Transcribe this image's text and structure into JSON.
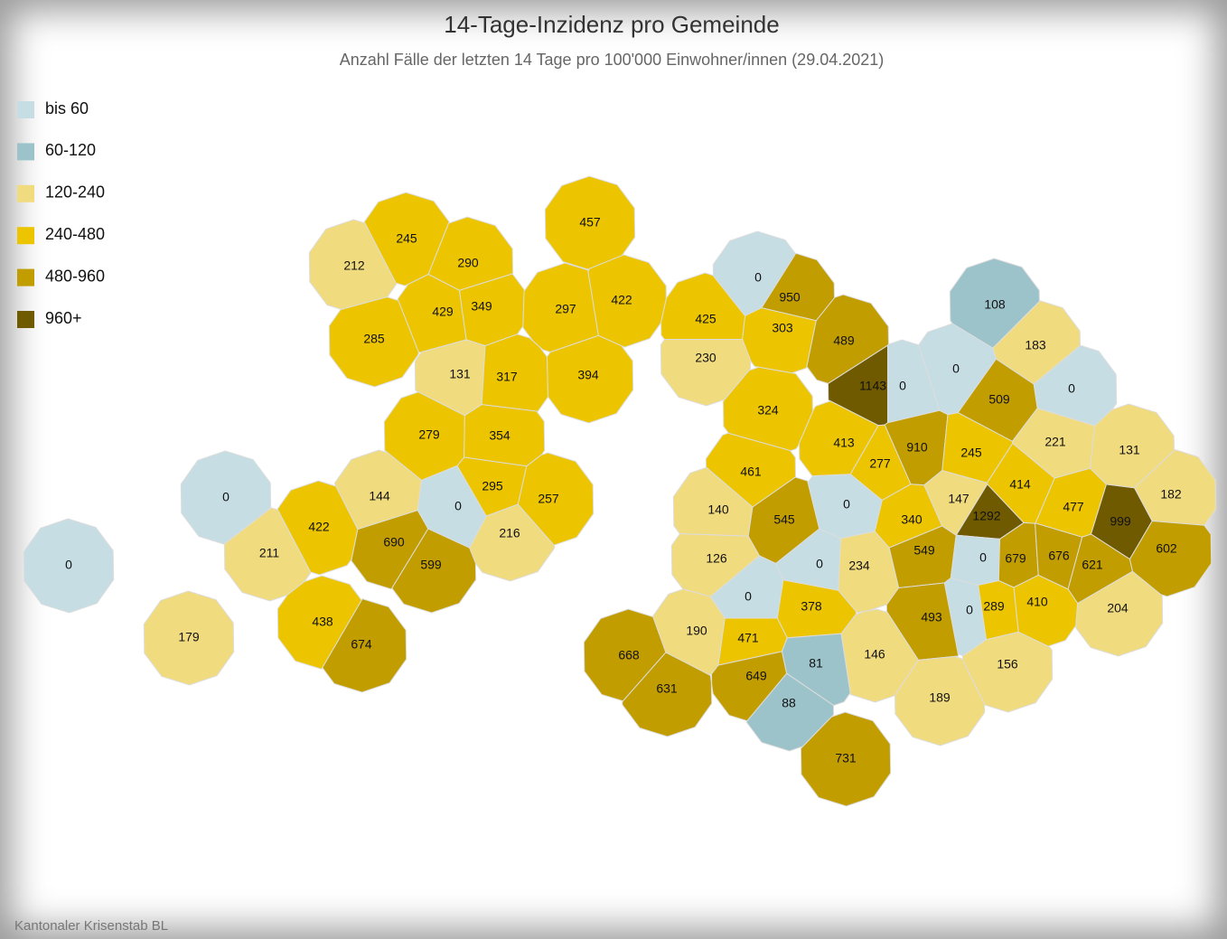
{
  "title": "14-Tage-Inzidenz pro Gemeinde",
  "subtitle": "Anzahl Fälle der letzten 14 Tage pro 100'000 Einwohner/innen (29.04.2021)",
  "legend": [
    {
      "label": "bis 60",
      "color": "#c5dde3"
    },
    {
      "label": "60-120",
      "color": "#9dc3ca"
    },
    {
      "label": "120-240",
      "color": "#f1db7f"
    },
    {
      "label": "240-480",
      "color": "#ecc500"
    },
    {
      "label": "480-960",
      "color": "#c19d00"
    },
    {
      "label": "960+",
      "color": "#6f5a00"
    }
  ],
  "regions": [
    {
      "value": 245,
      "color": "#ecc500"
    },
    {
      "value": 212,
      "color": "#f1db7f"
    },
    {
      "value": 290,
      "color": "#ecc500"
    },
    {
      "value": 429,
      "color": "#ecc500"
    },
    {
      "value": 349,
      "color": "#ecc500"
    },
    {
      "value": 285,
      "color": "#ecc500"
    },
    {
      "value": 131,
      "color": "#f1db7f"
    },
    {
      "value": 317,
      "color": "#ecc500"
    },
    {
      "value": 457,
      "color": "#ecc500"
    },
    {
      "value": 297,
      "color": "#ecc500"
    },
    {
      "value": 422,
      "color": "#ecc500"
    },
    {
      "value": 394,
      "color": "#ecc500"
    },
    {
      "value": 425,
      "color": "#ecc500"
    },
    {
      "value": 0,
      "color": "#c5dde3"
    },
    {
      "value": 950,
      "color": "#c19d00"
    },
    {
      "value": 303,
      "color": "#ecc500"
    },
    {
      "value": 489,
      "color": "#c19d00"
    },
    {
      "value": 230,
      "color": "#f1db7f"
    },
    {
      "value": 1143,
      "color": "#6f5a00"
    },
    {
      "value": 0,
      "color": "#c5dde3"
    },
    {
      "value": 324,
      "color": "#ecc500"
    },
    {
      "value": 279,
      "color": "#ecc500"
    },
    {
      "value": 354,
      "color": "#ecc500"
    },
    {
      "value": 295,
      "color": "#ecc500"
    },
    {
      "value": 257,
      "color": "#ecc500"
    },
    {
      "value": 216,
      "color": "#f1db7f"
    },
    {
      "value": 0,
      "color": "#c5dde3"
    },
    {
      "value": 144,
      "color": "#f1db7f"
    },
    {
      "value": 422,
      "color": "#ecc500"
    },
    {
      "value": 690,
      "color": "#c19d00"
    },
    {
      "value": 599,
      "color": "#c19d00"
    },
    {
      "value": 211,
      "color": "#f1db7f"
    },
    {
      "value": 0,
      "color": "#c5dde3"
    },
    {
      "value": 0,
      "color": "#c5dde3"
    },
    {
      "value": 179,
      "color": "#f1db7f"
    },
    {
      "value": 438,
      "color": "#ecc500"
    },
    {
      "value": 674,
      "color": "#c19d00"
    },
    {
      "value": 413,
      "color": "#ecc500"
    },
    {
      "value": 277,
      "color": "#ecc500"
    },
    {
      "value": 910,
      "color": "#c19d00"
    },
    {
      "value": 461,
      "color": "#ecc500"
    },
    {
      "value": 545,
      "color": "#c19d00"
    },
    {
      "value": 140,
      "color": "#f1db7f"
    },
    {
      "value": 0,
      "color": "#c5dde3"
    },
    {
      "value": 340,
      "color": "#ecc500"
    },
    {
      "value": 147,
      "color": "#f1db7f"
    },
    {
      "value": 1292,
      "color": "#6f5a00"
    },
    {
      "value": 245,
      "color": "#ecc500"
    },
    {
      "value": 414,
      "color": "#ecc500"
    },
    {
      "value": 477,
      "color": "#ecc500"
    },
    {
      "value": 999,
      "color": "#6f5a00"
    },
    {
      "value": 131,
      "color": "#f1db7f"
    },
    {
      "value": 182,
      "color": "#f1db7f"
    },
    {
      "value": 602,
      "color": "#c19d00"
    },
    {
      "value": 549,
      "color": "#c19d00"
    },
    {
      "value": 234,
      "color": "#f1db7f"
    },
    {
      "value": 0,
      "color": "#c5dde3"
    },
    {
      "value": 126,
      "color": "#f1db7f"
    },
    {
      "value": 0,
      "color": "#c5dde3"
    },
    {
      "value": 0,
      "color": "#c5dde3"
    },
    {
      "value": 679,
      "color": "#c19d00"
    },
    {
      "value": 676,
      "color": "#c19d00"
    },
    {
      "value": 621,
      "color": "#c19d00"
    },
    {
      "value": 410,
      "color": "#ecc500"
    },
    {
      "value": 204,
      "color": "#f1db7f"
    },
    {
      "value": 289,
      "color": "#ecc500"
    },
    {
      "value": 0,
      "color": "#c5dde3"
    },
    {
      "value": 493,
      "color": "#c19d00"
    },
    {
      "value": 378,
      "color": "#ecc500"
    },
    {
      "value": 471,
      "color": "#ecc500"
    },
    {
      "value": 190,
      "color": "#f1db7f"
    },
    {
      "value": 668,
      "color": "#c19d00"
    },
    {
      "value": 631,
      "color": "#c19d00"
    },
    {
      "value": 649,
      "color": "#c19d00"
    },
    {
      "value": 81,
      "color": "#9dc3ca"
    },
    {
      "value": 88,
      "color": "#9dc3ca"
    },
    {
      "value": 146,
      "color": "#f1db7f"
    },
    {
      "value": 189,
      "color": "#f1db7f"
    },
    {
      "value": 156,
      "color": "#f1db7f"
    },
    {
      "value": 731,
      "color": "#c19d00"
    },
    {
      "value": 108,
      "color": "#9dc3ca"
    },
    {
      "value": 183,
      "color": "#f1db7f"
    },
    {
      "value": 0,
      "color": "#c5dde3"
    },
    {
      "value": 509,
      "color": "#c19d00"
    },
    {
      "value": 0,
      "color": "#c5dde3"
    },
    {
      "value": 221,
      "color": "#f1db7f"
    }
  ],
  "source": "Kantonaler Krisenstab BL"
}
